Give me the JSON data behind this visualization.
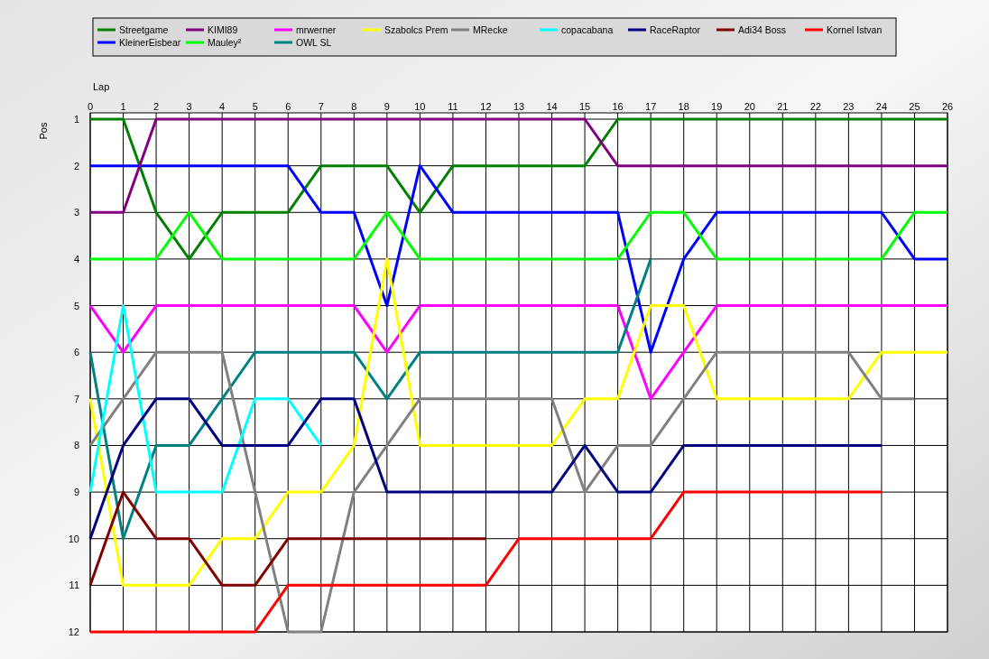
{
  "chart_data": {
    "type": "line",
    "xlabel": "Lap",
    "ylabel": "Pos",
    "x": [
      0,
      1,
      2,
      3,
      4,
      5,
      6,
      7,
      8,
      9,
      10,
      11,
      12,
      13,
      14,
      15,
      16,
      17,
      18,
      19,
      20,
      21,
      22,
      23,
      24,
      25,
      26
    ],
    "xlim": [
      0,
      26
    ],
    "xticks": [
      0,
      1,
      2,
      3,
      4,
      5,
      6,
      7,
      8,
      9,
      10,
      11,
      12,
      13,
      14,
      15,
      16,
      17,
      18,
      19,
      20,
      21,
      22,
      23,
      24,
      25,
      26
    ],
    "ylim": [
      12,
      1
    ],
    "yticks": [
      1,
      2,
      3,
      4,
      5,
      6,
      7,
      8,
      9,
      10,
      11,
      12
    ],
    "grid": true,
    "legend": "top",
    "marker": "none",
    "line_style": "solid",
    "series": [
      {
        "name": "Streetgame",
        "color": "#008000",
        "values": [
          1,
          1,
          3,
          4,
          3,
          3,
          3,
          2,
          2,
          2,
          3,
          2,
          2,
          2,
          2,
          2,
          1,
          1,
          1,
          1,
          1,
          1,
          1,
          1,
          1,
          1,
          1
        ]
      },
      {
        "name": "KleinerEisbear",
        "color": "#0000ff",
        "values": [
          2,
          2,
          2,
          2,
          2,
          2,
          2,
          3,
          3,
          5,
          2,
          3,
          3,
          3,
          3,
          3,
          3,
          6,
          4,
          3,
          3,
          3,
          3,
          3,
          3,
          4,
          4
        ]
      },
      {
        "name": "KIMI89",
        "color": "#800080",
        "values": [
          3,
          3,
          1,
          1,
          1,
          1,
          1,
          1,
          1,
          1,
          1,
          1,
          1,
          1,
          1,
          1,
          2,
          2,
          2,
          2,
          2,
          2,
          2,
          2,
          2,
          2,
          2
        ]
      },
      {
        "name": "Mauley²",
        "color": "#00ff00",
        "values": [
          4,
          4,
          4,
          3,
          4,
          4,
          4,
          4,
          4,
          3,
          4,
          4,
          4,
          4,
          4,
          4,
          4,
          3,
          3,
          4,
          4,
          4,
          4,
          4,
          4,
          3,
          3
        ]
      },
      {
        "name": "mrwerner",
        "color": "#ff00ff",
        "values": [
          5,
          6,
          5,
          5,
          5,
          5,
          5,
          5,
          5,
          6,
          5,
          5,
          5,
          5,
          5,
          5,
          5,
          7,
          6,
          5,
          5,
          5,
          5,
          5,
          5,
          5,
          5
        ]
      },
      {
        "name": "OWL SL",
        "color": "#008080",
        "values": [
          6,
          10,
          8,
          8,
          7,
          6,
          6,
          6,
          6,
          7,
          6,
          6,
          6,
          6,
          6,
          6,
          6,
          4,
          null,
          null,
          null,
          null,
          null,
          null,
          null,
          null,
          null
        ]
      },
      {
        "name": "Szabolcs Prem",
        "color": "#ffff00",
        "values": [
          7,
          11,
          11,
          11,
          10,
          10,
          9,
          9,
          8,
          4,
          8,
          8,
          8,
          8,
          8,
          7,
          7,
          5,
          5,
          7,
          7,
          7,
          7,
          7,
          6,
          6,
          6
        ]
      },
      {
        "name": "MRecke",
        "color": "#808080",
        "values": [
          8,
          7,
          6,
          6,
          6,
          9,
          12,
          12,
          9,
          8,
          7,
          7,
          7,
          7,
          7,
          9,
          8,
          8,
          7,
          6,
          6,
          6,
          6,
          6,
          7,
          7,
          null
        ]
      },
      {
        "name": "copacabana",
        "color": "#00ffff",
        "values": [
          9,
          5,
          9,
          9,
          9,
          7,
          7,
          8,
          null,
          null,
          null,
          null,
          null,
          null,
          null,
          null,
          null,
          null,
          null,
          null,
          null,
          null,
          null,
          null,
          null,
          null,
          null
        ]
      },
      {
        "name": "RaceRaptor",
        "color": "#000080",
        "values": [
          10,
          8,
          7,
          7,
          8,
          8,
          8,
          7,
          7,
          9,
          9,
          9,
          9,
          9,
          9,
          8,
          9,
          9,
          8,
          8,
          8,
          8,
          8,
          8,
          8,
          null,
          null
        ]
      },
      {
        "name": "Adi34 Boss",
        "color": "#800000",
        "values": [
          11,
          9,
          10,
          10,
          11,
          11,
          10,
          10,
          10,
          10,
          10,
          10,
          10,
          null,
          null,
          null,
          null,
          null,
          null,
          null,
          null,
          null,
          null,
          null,
          null,
          null,
          null
        ]
      },
      {
        "name": "Kornel Istvan",
        "color": "#ff0000",
        "values": [
          12,
          12,
          12,
          12,
          12,
          12,
          11,
          11,
          11,
          11,
          11,
          11,
          11,
          10,
          10,
          10,
          10,
          10,
          9,
          9,
          9,
          9,
          9,
          9,
          9,
          null,
          null
        ]
      }
    ]
  }
}
